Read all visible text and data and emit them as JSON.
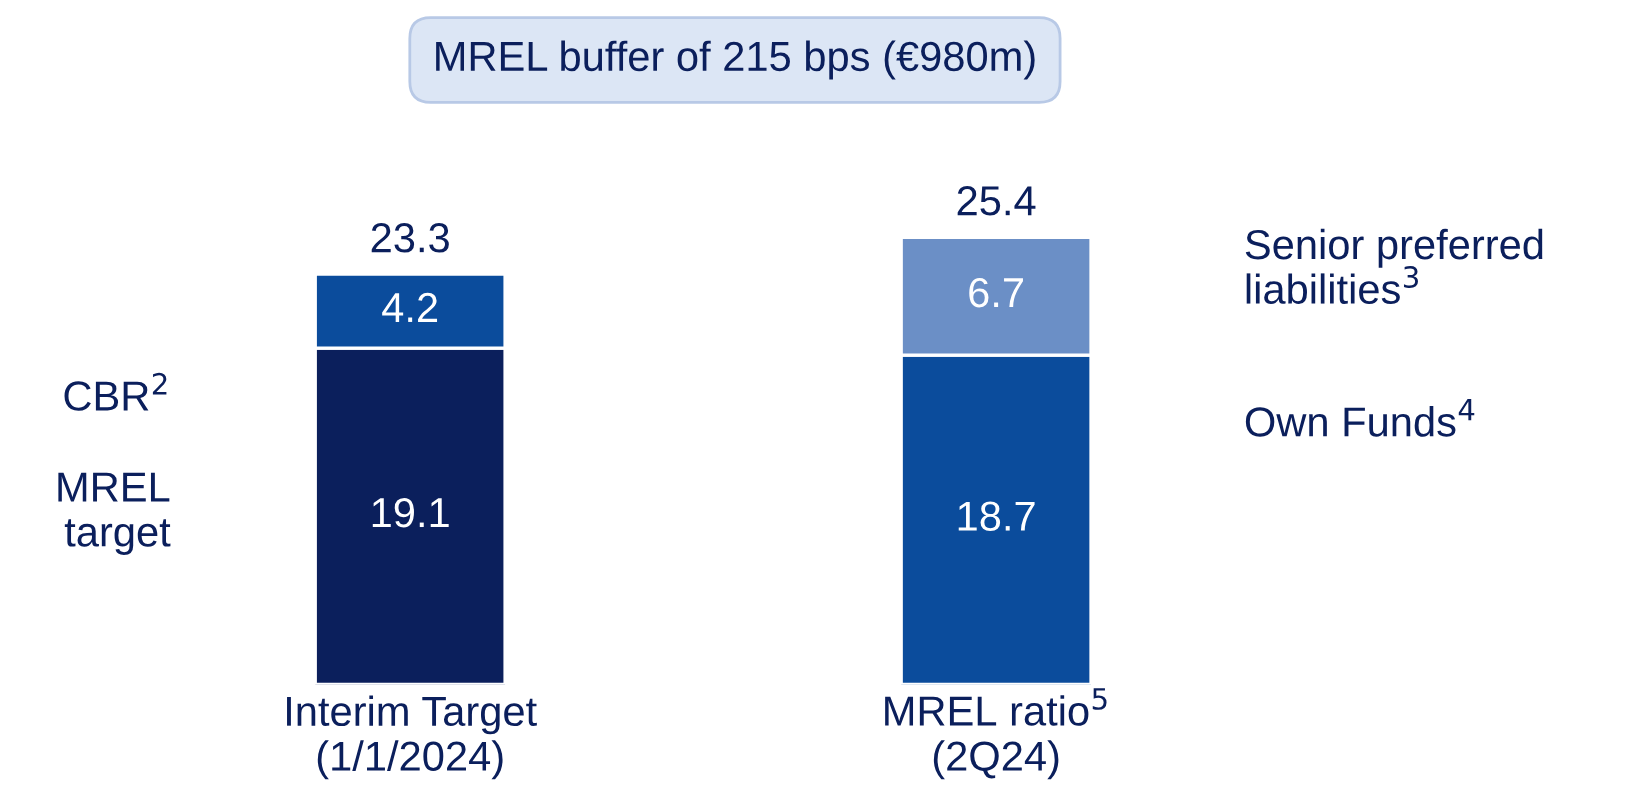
{
  "chart_data": {
    "type": "bar",
    "stacked": true,
    "title": "MREL buffer of 215 bps (€980m)",
    "categories": [
      "Interim Target\n(1/1/2024)",
      "MREL ratio$^{5}$\n(2Q24)"
    ],
    "series": [
      {
        "colors": [
          "#0b1f5c",
          "#0b4c9c"
        ],
        "values": [
          19.1,
          18.7
        ]
      },
      {
        "colors": [
          "#0b4c9c",
          "#6b8fc6"
        ],
        "values": [
          4.2,
          6.7
        ]
      }
    ],
    "data_labels": true,
    "totals": [
      "23.3",
      "25.4"
    ],
    "annotations": [
      "CBR$^{2}$",
      "MREL\ntarget",
      "Senior preferred\nliabilities$^{3}$",
      "Own Funds$^{4}$"
    ]
  }
}
